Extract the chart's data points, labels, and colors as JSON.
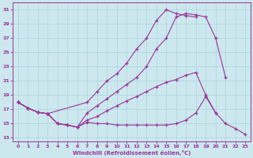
{
  "bg_color": "#cce8ee",
  "grid_color": "#aad4dd",
  "line_color": "#993399",
  "xlabel": "Windchill (Refroidissement éolien,°C)",
  "x_min": -0.5,
  "x_max": 23.5,
  "y_min": 12.5,
  "y_max": 32.0,
  "yticks": [
    13,
    15,
    17,
    19,
    21,
    23,
    25,
    27,
    29,
    31
  ],
  "xticks": [
    0,
    1,
    2,
    3,
    4,
    5,
    6,
    7,
    8,
    9,
    10,
    11,
    12,
    13,
    14,
    15,
    16,
    17,
    18,
    19,
    20,
    21,
    22,
    23
  ],
  "s1_x": [
    0,
    1,
    2,
    3,
    7,
    8,
    9,
    10,
    11,
    12,
    13,
    14,
    15,
    16,
    17,
    18
  ],
  "s1_y": [
    18.0,
    17.2,
    16.6,
    16.4,
    18.0,
    19.5,
    21.0,
    22.0,
    23.5,
    25.5,
    27.0,
    29.5,
    31.0,
    30.5,
    30.2,
    30.0
  ],
  "s2_x": [
    0,
    1,
    2,
    3,
    4,
    5,
    6,
    7,
    8,
    9,
    10,
    11,
    12,
    13,
    14,
    15,
    16,
    17,
    18,
    19,
    20,
    21
  ],
  "s2_y": [
    18.0,
    17.2,
    16.6,
    16.4,
    15.0,
    14.8,
    14.5,
    16.5,
    17.5,
    18.5,
    19.5,
    20.5,
    21.5,
    23.0,
    25.5,
    27.0,
    30.0,
    30.5,
    30.3,
    30.0,
    27.0,
    21.5
  ],
  "s3_x": [
    0,
    1,
    2,
    3,
    4,
    5,
    6,
    7,
    8,
    9,
    10,
    11,
    12,
    13,
    14,
    15,
    16,
    17,
    18,
    19,
    20
  ],
  "s3_y": [
    18.0,
    17.2,
    16.6,
    16.4,
    15.0,
    14.8,
    14.5,
    15.5,
    16.0,
    16.8,
    17.5,
    18.2,
    18.8,
    19.5,
    20.2,
    20.8,
    21.2,
    21.8,
    22.2,
    19.0,
    16.5
  ],
  "s4_x": [
    0,
    1,
    2,
    3,
    4,
    5,
    6,
    7,
    8,
    9,
    10,
    11,
    12,
    13,
    14,
    15,
    16,
    17,
    18,
    19,
    20,
    21,
    22,
    23
  ],
  "s4_y": [
    18.0,
    17.2,
    16.6,
    16.4,
    15.0,
    14.8,
    14.5,
    15.2,
    15.0,
    15.0,
    14.8,
    14.8,
    14.8,
    14.8,
    14.8,
    14.8,
    15.0,
    15.5,
    16.5,
    18.8,
    16.5,
    15.0,
    14.3,
    13.5
  ]
}
